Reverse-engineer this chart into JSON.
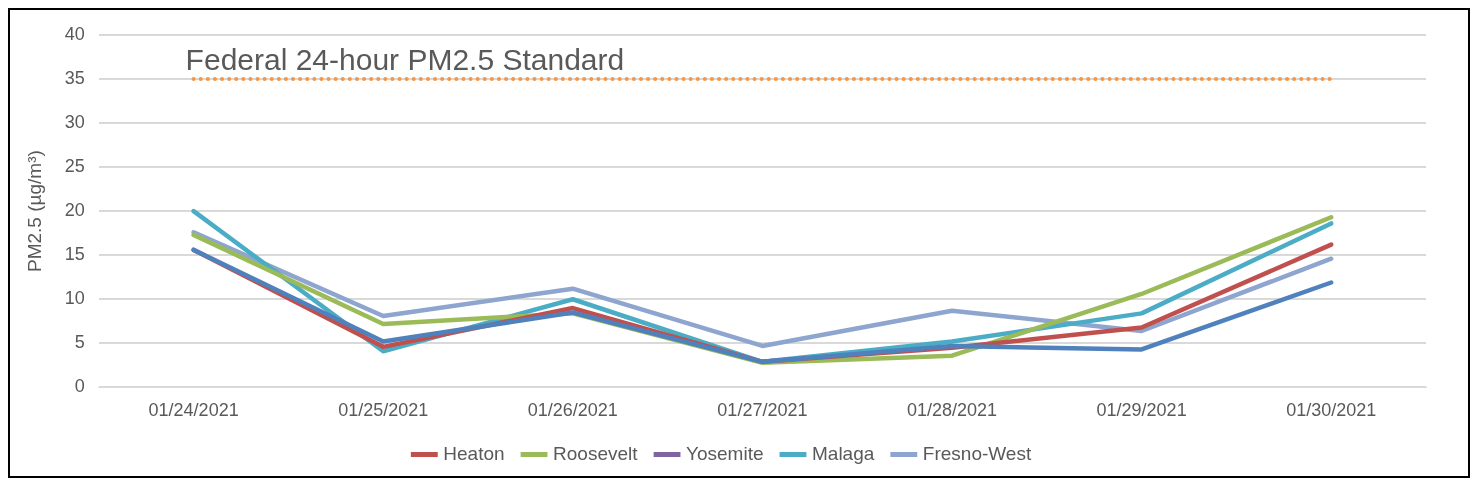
{
  "chart_data": {
    "type": "line",
    "ylabel": "PM2.5 (µg/m³)",
    "categories": [
      "01/24/2021",
      "01/25/2021",
      "01/26/2021",
      "01/27/2021",
      "01/28/2021",
      "01/29/2021",
      "01/30/2021"
    ],
    "series": [
      {
        "color": "#4f81bd",
        "values": [
          15.6,
          5.2,
          8.5,
          2.9,
          4.7,
          4.3,
          11.9
        ]
      },
      {
        "name": "Heaton",
        "color": "#c0504d",
        "values": [
          15.6,
          4.6,
          9.0,
          2.9,
          4.5,
          6.8,
          16.2
        ]
      },
      {
        "name": "Roosevelt",
        "color": "#9bbb59",
        "values": [
          17.3,
          7.2,
          8.4,
          2.8,
          3.6,
          10.6,
          19.3
        ]
      },
      {
        "name": "Yosemite",
        "color": "#8064a2",
        "values": [
          null,
          null,
          null,
          null,
          null,
          null,
          null
        ]
      },
      {
        "name": "Malaga",
        "color": "#4bacc6",
        "values": [
          20.0,
          4.1,
          10.0,
          2.9,
          5.2,
          8.4,
          18.6
        ]
      },
      {
        "name": "Fresno-West",
        "color": "#8ea5cf",
        "values": [
          17.6,
          8.1,
          11.2,
          4.7,
          8.7,
          6.4,
          14.6
        ]
      }
    ],
    "ylim": [
      0,
      40
    ],
    "yticks": [
      0,
      5,
      10,
      15,
      20,
      25,
      30,
      35,
      40
    ],
    "grid": "y",
    "legend": "bottom",
    "marker": "none",
    "line_style": "solid",
    "ref_lines": [
      {
        "axis": "y",
        "value": 35,
        "label": "Federal 24-hour PM2.5 Standard",
        "color": "#f79646",
        "line_style": "dotted"
      }
    ]
  }
}
